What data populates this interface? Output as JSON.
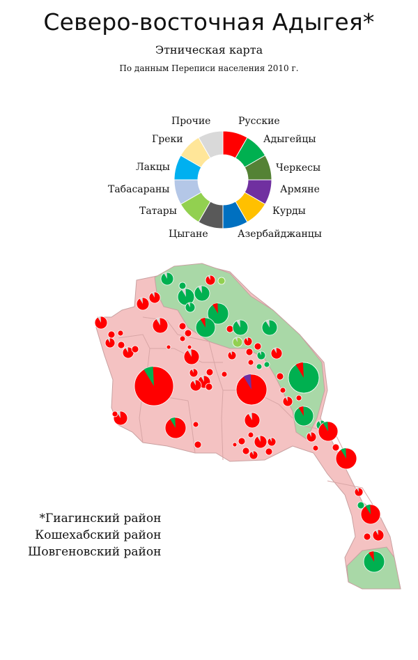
{
  "header": {
    "title": "Северо-восточная Адыгея*",
    "subtitle": "Этническая карта",
    "source": "По данным Переписи населения 2010 г."
  },
  "legend": {
    "items": [
      {
        "label": "Русские",
        "color": "#ff0000"
      },
      {
        "label": "Адыгейцы",
        "color": "#00b050"
      },
      {
        "label": "Черкесы",
        "color": "#548235"
      },
      {
        "label": "Армяне",
        "color": "#7030a0"
      },
      {
        "label": "Курды",
        "color": "#ffc000"
      },
      {
        "label": "Азербайджанцы",
        "color": "#0070c0"
      },
      {
        "label": "Цыгане",
        "color": "#595959"
      },
      {
        "label": "Татары",
        "color": "#92d050"
      },
      {
        "label": "Табасараны",
        "color": "#b4c7e7"
      },
      {
        "label": "Лакцы",
        "color": "#00b0f0"
      },
      {
        "label": "Греки",
        "color": "#ffe699"
      },
      {
        "label": "Прочие",
        "color": "#d9d9d9"
      }
    ]
  },
  "map": {
    "region_colors": {
      "russian_majority": "#f4c2c2",
      "adyghe_majority": "#a9d8a7",
      "border": "#c8a0a0"
    }
  },
  "footnote": {
    "lines": [
      "*Гиагинский район",
      "Кошехабский район",
      "Шовгеновский район"
    ]
  }
}
